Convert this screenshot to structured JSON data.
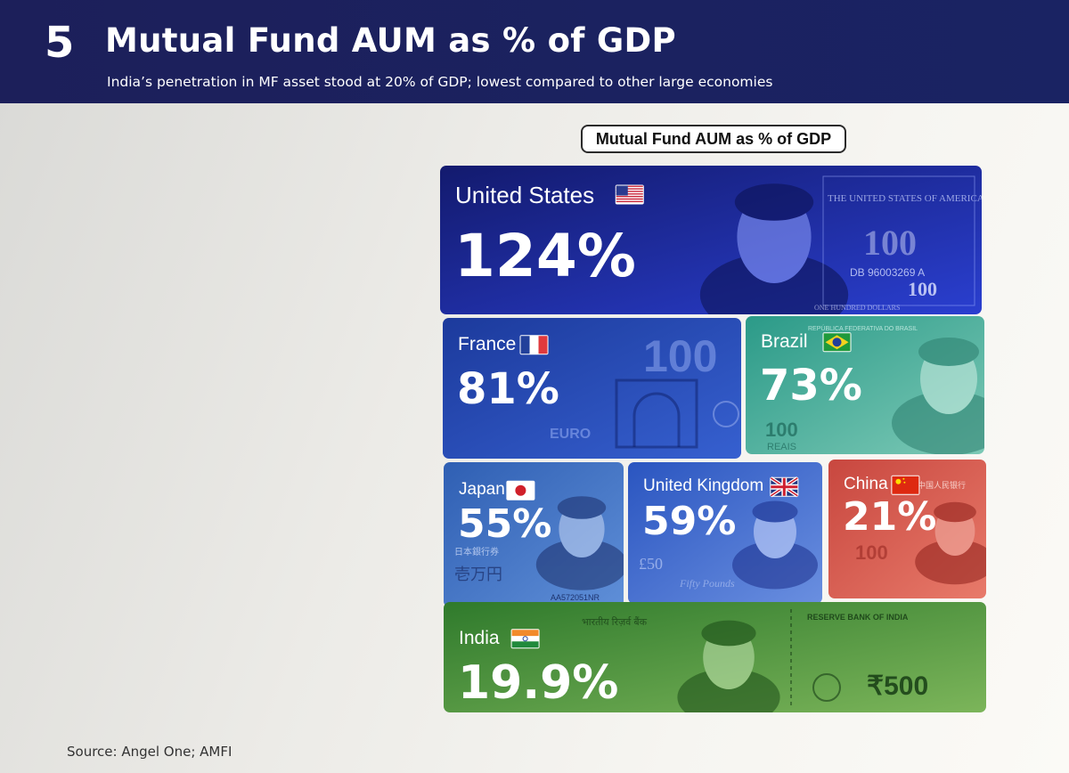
{
  "header": {
    "slide_number": "5",
    "title": "Mutual Fund AUM as % of GDP",
    "subtitle": "India’s penetration in MF asset stood at 20%  of GDP;  lowest compared to other large economies"
  },
  "chart_data": {
    "type": "table",
    "title": "Mutual Fund AUM as % of GDP",
    "unit": "%",
    "categories": [
      "United States",
      "France",
      "Brazil",
      "Japan",
      "United Kingdom",
      "China",
      "India"
    ],
    "values": [
      124,
      81,
      73,
      55,
      59,
      21,
      19.9
    ],
    "value_labels": [
      "124%",
      "81%",
      "73%",
      "55%",
      "59%",
      "21%",
      "19.9%"
    ],
    "colors": [
      "#1a2a9a",
      "#2344b8",
      "#2fa08e",
      "#3a6fc4",
      "#3a66d0",
      "#d85a50",
      "#3f8e3a"
    ]
  },
  "banknote_text": {
    "us_serial": "DB 96003269 A",
    "us_header": "THE UNITED STATES OF AMERICA",
    "us_denom": "100",
    "us_footer": "ONE HUNDRED DOLLARS",
    "euro_denom": "100",
    "euro_word": "EURO",
    "brazil_header": "REPÚBLICA FEDERATIVA DO BRASIL",
    "brazil_denom": "100",
    "brazil_word": "REAIS",
    "japan_text": "日本銀行券",
    "japan_amount": "壱万円",
    "japan_serial": "AA572051NR",
    "uk_denom": "£50",
    "uk_word": "Fifty Pounds",
    "china_header": "中国人民银行",
    "china_denom": "100",
    "india_header": "भारतीय रिज़र्व बैंक",
    "india_bank": "RESERVE BANK OF INDIA",
    "india_denom": "₹500"
  },
  "source": "Source:  Angel One; AMFI"
}
